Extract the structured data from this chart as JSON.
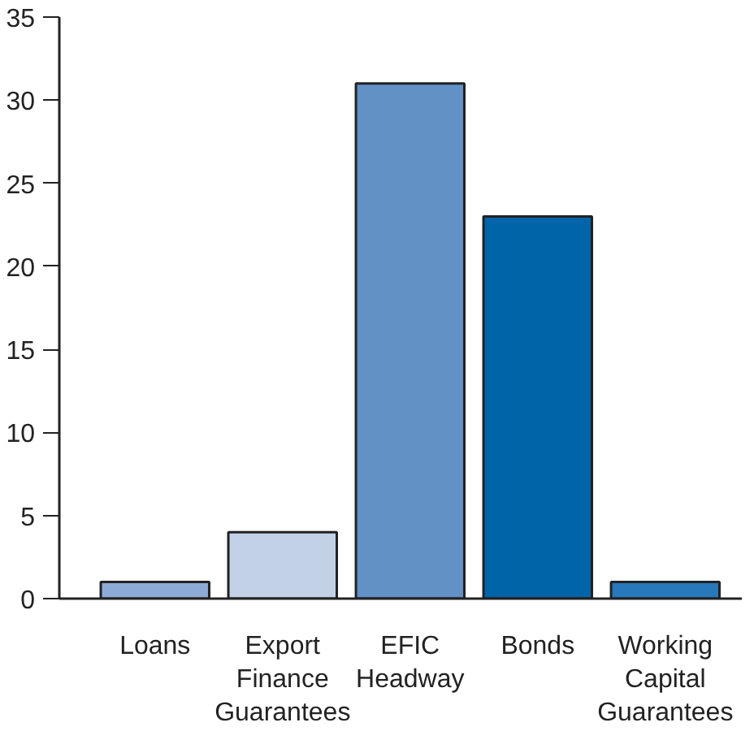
{
  "chart_data": {
    "type": "bar",
    "categories": [
      "Loans",
      "Export Finance Guarantees",
      "EFIC Headway",
      "Bonds",
      "Working Capital Guarantees"
    ],
    "values": [
      1,
      4,
      31,
      23,
      1
    ],
    "colors": [
      "#8eaad6",
      "#c3d1e7",
      "#6191c5",
      "#0064a8",
      "#2779ba"
    ],
    "ylim": [
      0,
      35
    ],
    "yticks": [
      0,
      5,
      10,
      15,
      20,
      25,
      30,
      35
    ],
    "grid": false
  }
}
